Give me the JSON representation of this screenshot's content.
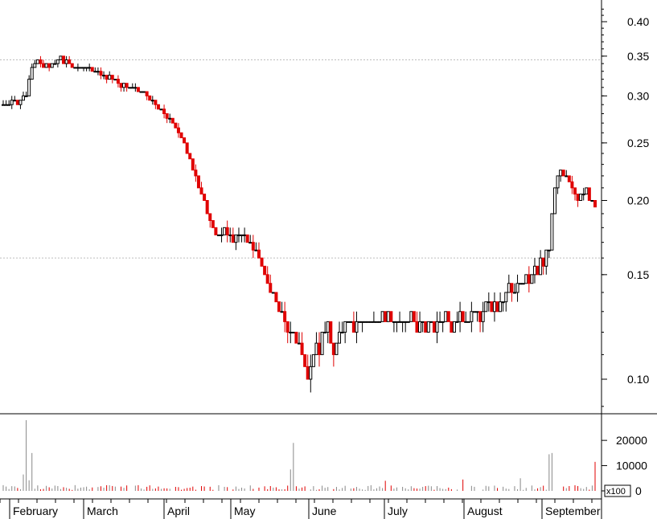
{
  "chart_data": {
    "type": "candlestick",
    "price_axis": {
      "scale": "log",
      "ticks": [
        {
          "value": 0.1,
          "label": "0.10"
        },
        {
          "value": 0.15,
          "label": "0.15"
        },
        {
          "value": 0.2,
          "label": "0.20"
        },
        {
          "value": 0.25,
          "label": "0.25"
        },
        {
          "value": 0.3,
          "label": "0.30"
        },
        {
          "value": 0.35,
          "label": "0.35"
        },
        {
          "value": 0.4,
          "label": "0.40"
        }
      ],
      "ylim": [
        0.088,
        0.43
      ],
      "reference_lines": [
        0.345,
        0.16
      ]
    },
    "volume_axis": {
      "ticks": [
        {
          "value": 0,
          "label": "0"
        },
        {
          "value": 10000,
          "label": "10000"
        },
        {
          "value": 20000,
          "label": "20000"
        }
      ],
      "ylim": [
        0,
        28000
      ],
      "unit_label": "x100"
    },
    "months": [
      "February",
      "March",
      "April",
      "May",
      "June",
      "July",
      "August",
      "September"
    ],
    "ohlc_anchors": [
      [
        0,
        0.29
      ],
      [
        4,
        0.295
      ],
      [
        8,
        0.3
      ],
      [
        10,
        0.335
      ],
      [
        12,
        0.345
      ],
      [
        16,
        0.335
      ],
      [
        20,
        0.345
      ],
      [
        24,
        0.335
      ],
      [
        28,
        0.335
      ],
      [
        32,
        0.33
      ],
      [
        36,
        0.325
      ],
      [
        40,
        0.315
      ],
      [
        44,
        0.31
      ],
      [
        48,
        0.305
      ],
      [
        52,
        0.295
      ],
      [
        56,
        0.28
      ],
      [
        60,
        0.265
      ],
      [
        63,
        0.25
      ],
      [
        66,
        0.225
      ],
      [
        69,
        0.205
      ],
      [
        72,
        0.185
      ],
      [
        75,
        0.175
      ],
      [
        79,
        0.175
      ],
      [
        83,
        0.175
      ],
      [
        86,
        0.17
      ],
      [
        89,
        0.16
      ],
      [
        92,
        0.145
      ],
      [
        95,
        0.135
      ],
      [
        98,
        0.125
      ],
      [
        101,
        0.12
      ],
      [
        104,
        0.11
      ],
      [
        106,
        0.1
      ],
      [
        109,
        0.115
      ],
      [
        112,
        0.12
      ],
      [
        116,
        0.115
      ],
      [
        120,
        0.125
      ],
      [
        125,
        0.125
      ],
      [
        130,
        0.125
      ],
      [
        135,
        0.125
      ],
      [
        140,
        0.125
      ],
      [
        145,
        0.125
      ],
      [
        150,
        0.125
      ],
      [
        155,
        0.125
      ],
      [
        160,
        0.125
      ],
      [
        165,
        0.13
      ],
      [
        170,
        0.135
      ],
      [
        174,
        0.135
      ],
      [
        177,
        0.14
      ],
      [
        180,
        0.145
      ],
      [
        183,
        0.15
      ],
      [
        186,
        0.155
      ],
      [
        188,
        0.16
      ],
      [
        190,
        0.165
      ],
      [
        192,
        0.21
      ],
      [
        194,
        0.225
      ],
      [
        197,
        0.215
      ],
      [
        200,
        0.2
      ],
      [
        203,
        0.205
      ],
      [
        206,
        0.195
      ]
    ],
    "n_days": 207,
    "volume_spikes": [
      [
        7,
        6500
      ],
      [
        8,
        28000
      ],
      [
        9,
        4200
      ],
      [
        10,
        15000
      ],
      [
        100,
        8500
      ],
      [
        101,
        19000
      ],
      [
        133,
        4000
      ],
      [
        134,
        6000
      ],
      [
        160,
        4500
      ],
      [
        180,
        5000
      ],
      [
        190,
        14500
      ],
      [
        191,
        15000
      ],
      [
        192,
        10500
      ],
      [
        193,
        6000
      ],
      [
        194,
        2500
      ],
      [
        206,
        11500
      ]
    ],
    "volume_base": 1200
  }
}
